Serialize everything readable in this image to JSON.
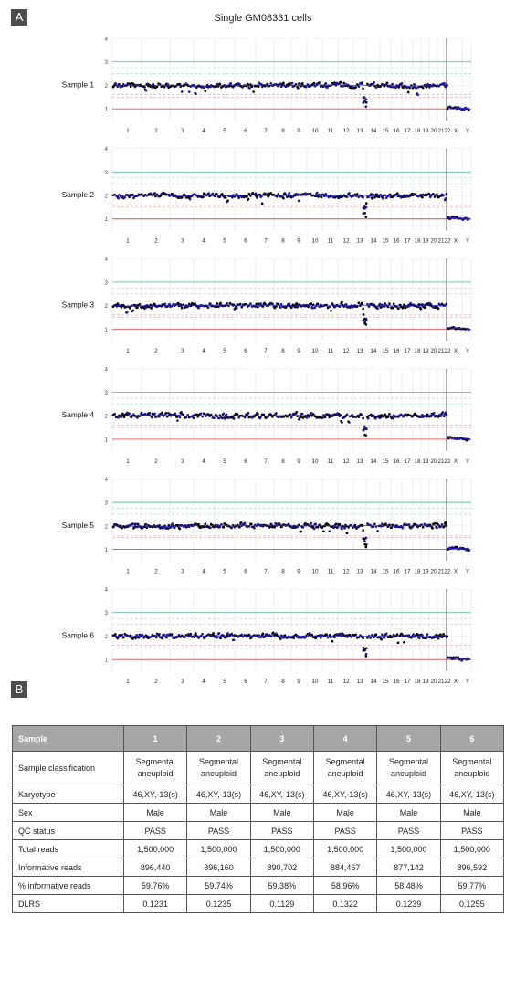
{
  "panel_labels": {
    "a": "A",
    "b": "B"
  },
  "figure_title": "Single GM08331 cells",
  "chart_data": [
    {
      "type": "scatter",
      "title": "Sample 1",
      "y_ticks": [
        "1",
        "2",
        "3",
        "4"
      ],
      "ylim": [
        0.5,
        4
      ],
      "x_tick_labels": [
        "1",
        "2",
        "3",
        "4",
        "5",
        "6",
        "7",
        "8",
        "9",
        "10",
        "11",
        "12",
        "13",
        "14",
        "15",
        "16",
        "17",
        "18",
        "19",
        "20",
        "21",
        "22",
        "X",
        "Y"
      ],
      "chromosomes": [
        {
          "chr": "1-12",
          "copy_number": 2
        },
        {
          "chr": "13",
          "copy_number": "2→1 (distal loss)"
        },
        {
          "chr": "14-22",
          "copy_number": 2
        },
        {
          "chr": "X",
          "copy_number": 1
        },
        {
          "chr": "Y",
          "copy_number": 1
        }
      ],
      "reference_lines": [
        {
          "y": 3,
          "color": "#66c2a5"
        },
        {
          "y": 1,
          "color": "#d9534f"
        }
      ]
    },
    {
      "type": "scatter",
      "title": "Sample 2",
      "y_ticks": [
        "1",
        "2",
        "3",
        "4"
      ],
      "ylim": [
        0.5,
        4
      ],
      "x_tick_labels": [
        "1",
        "2",
        "3",
        "4",
        "5",
        "6",
        "7",
        "8",
        "9",
        "10",
        "11",
        "12",
        "13",
        "14",
        "15",
        "16",
        "17",
        "18",
        "19",
        "20",
        "21",
        "22",
        "X",
        "Y"
      ],
      "chromosomes": [
        {
          "chr": "1-12",
          "copy_number": 2
        },
        {
          "chr": "13",
          "copy_number": "2→1 (distal loss)"
        },
        {
          "chr": "14-22",
          "copy_number": 2
        },
        {
          "chr": "X",
          "copy_number": 1
        },
        {
          "chr": "Y",
          "copy_number": 1
        }
      ],
      "reference_lines": [
        {
          "y": 3,
          "color": "#66c2a5"
        },
        {
          "y": 1,
          "color": "#d9534f"
        }
      ]
    },
    {
      "type": "scatter",
      "title": "Sample 3",
      "y_ticks": [
        "1",
        "2",
        "3",
        "4"
      ],
      "ylim": [
        0.5,
        4
      ],
      "x_tick_labels": [
        "1",
        "2",
        "3",
        "4",
        "5",
        "6",
        "7",
        "8",
        "9",
        "10",
        "11",
        "12",
        "13",
        "14",
        "15",
        "16",
        "17",
        "18",
        "19",
        "20",
        "21",
        "22",
        "X",
        "Y"
      ],
      "chromosomes": [
        {
          "chr": "1-12",
          "copy_number": 2
        },
        {
          "chr": "13",
          "copy_number": "2→1 (distal loss)"
        },
        {
          "chr": "14-22",
          "copy_number": 2
        },
        {
          "chr": "X",
          "copy_number": 1
        },
        {
          "chr": "Y",
          "copy_number": 1
        }
      ],
      "reference_lines": [
        {
          "y": 3,
          "color": "#66c2a5"
        },
        {
          "y": 1,
          "color": "#d9534f"
        }
      ]
    },
    {
      "type": "scatter",
      "title": "Sample 4",
      "y_ticks": [
        "1",
        "2",
        "3",
        "4"
      ],
      "ylim": [
        0.5,
        4
      ],
      "x_tick_labels": [
        "1",
        "2",
        "3",
        "4",
        "5",
        "6",
        "7",
        "8",
        "9",
        "10",
        "11",
        "12",
        "13",
        "14",
        "15",
        "16",
        "17",
        "18",
        "19",
        "20",
        "21",
        "22",
        "X",
        "Y"
      ],
      "chromosomes": [
        {
          "chr": "1-12",
          "copy_number": 2
        },
        {
          "chr": "13",
          "copy_number": "2→1 (distal loss)"
        },
        {
          "chr": "14-22",
          "copy_number": 2
        },
        {
          "chr": "X",
          "copy_number": 1
        },
        {
          "chr": "Y",
          "copy_number": 1
        }
      ],
      "reference_lines": [
        {
          "y": 3,
          "color": "#66c2a5"
        },
        {
          "y": 1,
          "color": "#d9534f"
        }
      ]
    },
    {
      "type": "scatter",
      "title": "Sample 5",
      "y_ticks": [
        "1",
        "2",
        "3",
        "4"
      ],
      "ylim": [
        0.5,
        4
      ],
      "x_tick_labels": [
        "1",
        "2",
        "3",
        "4",
        "5",
        "6",
        "7",
        "8",
        "9",
        "10",
        "11",
        "12",
        "13",
        "14",
        "15",
        "16",
        "17",
        "18",
        "19",
        "20",
        "21",
        "22",
        "X",
        "Y"
      ],
      "chromosomes": [
        {
          "chr": "1-12",
          "copy_number": 2
        },
        {
          "chr": "13",
          "copy_number": "2→1 (distal loss)"
        },
        {
          "chr": "14-22",
          "copy_number": 2
        },
        {
          "chr": "X",
          "copy_number": 1
        },
        {
          "chr": "Y",
          "copy_number": 1
        }
      ],
      "reference_lines": [
        {
          "y": 3,
          "color": "#66c2a5"
        },
        {
          "y": 1,
          "color": "#d9534f"
        }
      ]
    },
    {
      "type": "scatter",
      "title": "Sample 6",
      "y_ticks": [
        "1",
        "2",
        "3",
        "4"
      ],
      "ylim": [
        0.5,
        4
      ],
      "x_tick_labels": [
        "1",
        "2",
        "3",
        "4",
        "5",
        "6",
        "7",
        "8",
        "9",
        "10",
        "11",
        "12",
        "13",
        "14",
        "15",
        "16",
        "17",
        "18",
        "19",
        "20",
        "21",
        "22",
        "X",
        "Y"
      ],
      "chromosomes": [
        {
          "chr": "1-12",
          "copy_number": 2
        },
        {
          "chr": "13",
          "copy_number": "2→1 (distal loss)"
        },
        {
          "chr": "14-22",
          "copy_number": 2
        },
        {
          "chr": "X",
          "copy_number": 1
        },
        {
          "chr": "Y",
          "copy_number": 1
        }
      ],
      "reference_lines": [
        {
          "y": 3,
          "color": "#66c2a5"
        },
        {
          "y": 1,
          "color": "#d9534f"
        }
      ]
    }
  ],
  "table": {
    "headers": [
      "Sample",
      "1",
      "2",
      "3",
      "4",
      "5",
      "6"
    ],
    "rows": [
      {
        "label": "Sample classification",
        "cells": [
          [
            "Segmental",
            "aneuploid"
          ],
          [
            "Segmental",
            "aneuploid"
          ],
          [
            "Segmental",
            "aneuploid"
          ],
          [
            "Segmental",
            "aneuploid"
          ],
          [
            "Segmental",
            "aneuploid"
          ],
          [
            "Segmental",
            "aneuploid"
          ]
        ]
      },
      {
        "label": "Karyotype",
        "cells": [
          "46,XY,-13(s)",
          "46,XY,-13(s)",
          "46,XY,-13(s)",
          "46,XY,-13(s)",
          "46,XY,-13(s)",
          "46,XY,-13(s)"
        ]
      },
      {
        "label": "Sex",
        "cells": [
          "Male",
          "Male",
          "Male",
          "Male",
          "Male",
          "Male"
        ]
      },
      {
        "label": "QC status",
        "cells": [
          "PASS",
          "PASS",
          "PASS",
          "PASS",
          "PASS",
          "PASS"
        ]
      },
      {
        "label": "Total reads",
        "cells": [
          "1,500,000",
          "1,500,000",
          "1,500,000",
          "1,500,000",
          "1,500,000",
          "1,500,000"
        ]
      },
      {
        "label": "Informative reads",
        "cells": [
          "896,440",
          "896,160",
          "890,702",
          "884,467",
          "877,142",
          "896,592"
        ]
      },
      {
        "label": "% informative  reads",
        "cells": [
          "59.76%",
          "59.74%",
          "59.38%",
          "58.96%",
          "58.48%",
          "59.77%"
        ]
      },
      {
        "label": "DLRS",
        "cells": [
          "0.1231",
          "0.1235",
          "0.1129",
          "0.1322",
          "0.1239",
          "0.1255"
        ]
      }
    ]
  },
  "colors": {
    "point": "#1f1a80",
    "point_dark": "#000000",
    "trend": "#2b1fd1",
    "upper": "#66c2a5",
    "lower": "#d9534f"
  }
}
